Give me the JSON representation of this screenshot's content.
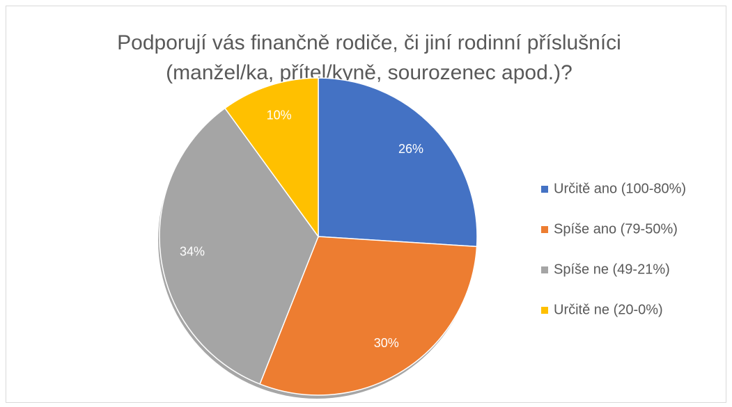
{
  "chart_data": {
    "type": "pie",
    "title": [
      "Podporují vás finančně rodiče, či jiní rodinní příslušníci",
      "(manžel/ka, přítel/kyně, sourozenec apod.)?"
    ],
    "categories": [
      "Určitě ano (100-80%)",
      "Spíše ano (79-50%)",
      "Spíše ne (49-21%)",
      "Určitě ne (20-0%)"
    ],
    "values": [
      26,
      30,
      34,
      10
    ],
    "value_labels": [
      "26%",
      "30%",
      "34%",
      "10%"
    ],
    "colors": [
      "#4472c4",
      "#ed7d31",
      "#a5a5a5",
      "#ffc000"
    ],
    "legend": "right"
  }
}
